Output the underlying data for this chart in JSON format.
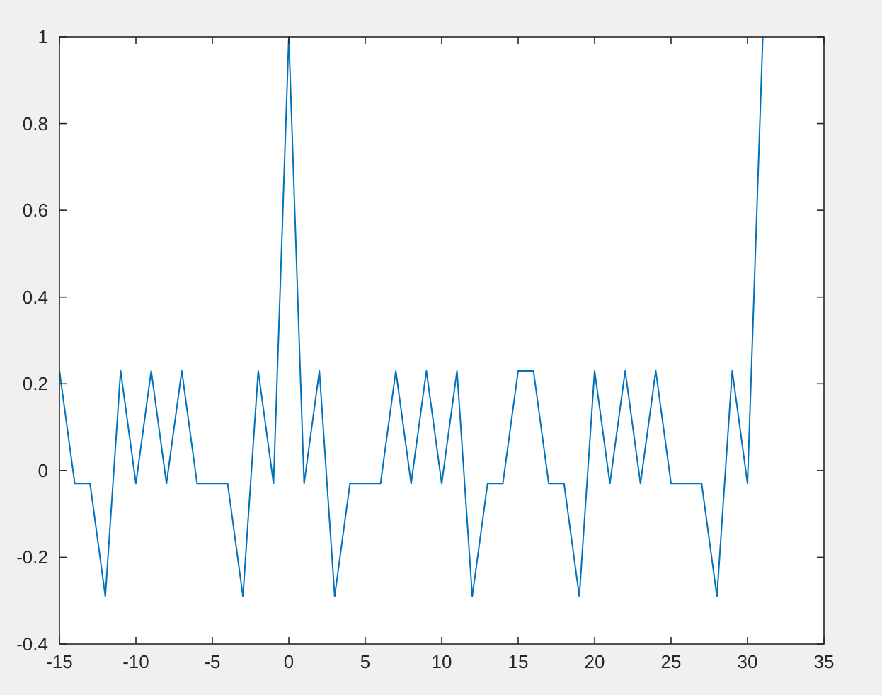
{
  "chart_data": {
    "type": "line",
    "x": [
      -15,
      -14,
      -13,
      -12,
      -11,
      -10,
      -9,
      -8,
      -7,
      -6,
      -5,
      -4,
      -3,
      -2,
      -1,
      0,
      1,
      2,
      3,
      4,
      5,
      6,
      7,
      8,
      9,
      10,
      11,
      12,
      13,
      14,
      15,
      16,
      17,
      18,
      19,
      20,
      21,
      22,
      23,
      24,
      25,
      26,
      27,
      28,
      29,
      30,
      31
    ],
    "series": [
      {
        "color": "#0072bd",
        "values": [
          0.23,
          -0.03,
          -0.03,
          -0.29,
          0.23,
          -0.03,
          0.23,
          -0.03,
          0.23,
          -0.03,
          -0.03,
          -0.03,
          -0.29,
          0.23,
          -0.03,
          1,
          -0.03,
          0.23,
          -0.29,
          -0.03,
          -0.03,
          -0.03,
          0.23,
          -0.03,
          0.23,
          -0.03,
          0.23,
          -0.29,
          -0.03,
          -0.03,
          0.23,
          0.23,
          -0.03,
          -0.03,
          -0.29,
          0.23,
          -0.03,
          0.23,
          -0.03,
          0.23,
          -0.03,
          -0.03,
          -0.03,
          -0.29,
          0.23,
          -0.03,
          1
        ]
      }
    ],
    "xlim": [
      -15,
      35
    ],
    "xticks": [
      -15,
      -10,
      -5,
      0,
      5,
      10,
      15,
      20,
      25,
      30,
      35
    ],
    "ylim": [
      -0.4,
      1
    ],
    "yticks": [
      -0.4,
      -0.2,
      0,
      0.2,
      0.4,
      0.6,
      0.8,
      1
    ],
    "grid": false,
    "marker": "none",
    "line_style": "solid"
  }
}
